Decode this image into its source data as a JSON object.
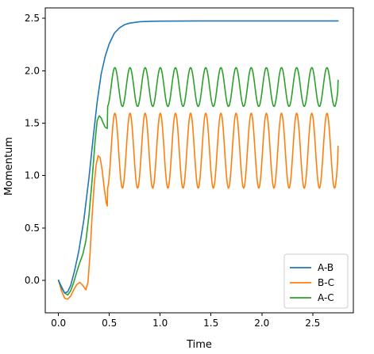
{
  "chart_data": {
    "type": "line",
    "xlabel": "Time",
    "ylabel": "Momentum",
    "xlim": [
      -0.13,
      2.9
    ],
    "ylim": [
      -0.31,
      2.6
    ],
    "xticks": [
      0.0,
      0.5,
      1.0,
      1.5,
      2.0,
      2.5
    ],
    "xtick_labels": [
      "0.0",
      "0.5",
      "1.0",
      "1.5",
      "2.0",
      "2.5"
    ],
    "yticks": [
      0.0,
      0.5,
      1.0,
      1.5,
      2.0,
      2.5
    ],
    "ytick_labels": [
      "0.0",
      "0.5",
      "1.0",
      "1.5",
      "2.0",
      "2.5"
    ],
    "grid": false,
    "legend_position": "lower-right",
    "series": [
      {
        "name": "A-B",
        "color": "#1f77b4",
        "x": [
          0.0,
          0.03,
          0.06,
          0.09,
          0.12,
          0.16,
          0.2,
          0.25,
          0.3,
          0.34,
          0.38,
          0.42,
          0.46,
          0.5,
          0.55,
          0.6,
          0.65,
          0.7,
          0.8,
          0.9,
          1.0,
          1.2,
          1.5,
          2.0,
          2.5,
          2.75
        ],
        "y": [
          0.0,
          -0.07,
          -0.12,
          -0.11,
          -0.05,
          0.1,
          0.28,
          0.58,
          0.98,
          1.35,
          1.7,
          1.97,
          2.14,
          2.26,
          2.36,
          2.41,
          2.44,
          2.455,
          2.468,
          2.472,
          2.474,
          2.475,
          2.476,
          2.476,
          2.476,
          2.476
        ]
      },
      {
        "name": "B-C",
        "color": "#ff7f0e",
        "x": [
          0.0,
          0.03,
          0.06,
          0.09,
          0.12,
          0.15,
          0.18,
          0.21,
          0.24,
          0.27,
          0.29,
          0.31,
          0.33,
          0.35,
          0.37,
          0.39,
          0.41,
          0.43,
          0.45,
          0.47,
          0.48
        ],
        "y": [
          0.0,
          -0.1,
          -0.17,
          -0.18,
          -0.15,
          -0.09,
          -0.04,
          -0.02,
          -0.05,
          -0.09,
          -0.02,
          0.25,
          0.6,
          0.9,
          1.1,
          1.19,
          1.17,
          1.05,
          0.88,
          0.74,
          0.71
        ],
        "oscillation": {
          "x_start": 0.48,
          "x_end": 2.75,
          "period": 0.149,
          "min": 0.88,
          "max": 1.595,
          "start_phase": "trough",
          "end_value": 1.28
        }
      },
      {
        "name": "A-C",
        "color": "#2ca02c",
        "x": [
          0.0,
          0.03,
          0.06,
          0.09,
          0.12,
          0.15,
          0.18,
          0.21,
          0.24,
          0.27,
          0.3,
          0.33,
          0.36,
          0.38,
          0.4,
          0.42,
          0.44,
          0.46,
          0.48
        ],
        "y": [
          0.0,
          -0.06,
          -0.12,
          -0.14,
          -0.1,
          -0.02,
          0.08,
          0.17,
          0.25,
          0.38,
          0.62,
          0.95,
          1.33,
          1.52,
          1.57,
          1.55,
          1.5,
          1.46,
          1.45
        ],
        "oscillation": {
          "x_start": 0.48,
          "x_end": 2.75,
          "period": 0.149,
          "min": 1.66,
          "max": 2.03,
          "start_phase": "trough",
          "end_value": 1.91
        }
      }
    ]
  }
}
